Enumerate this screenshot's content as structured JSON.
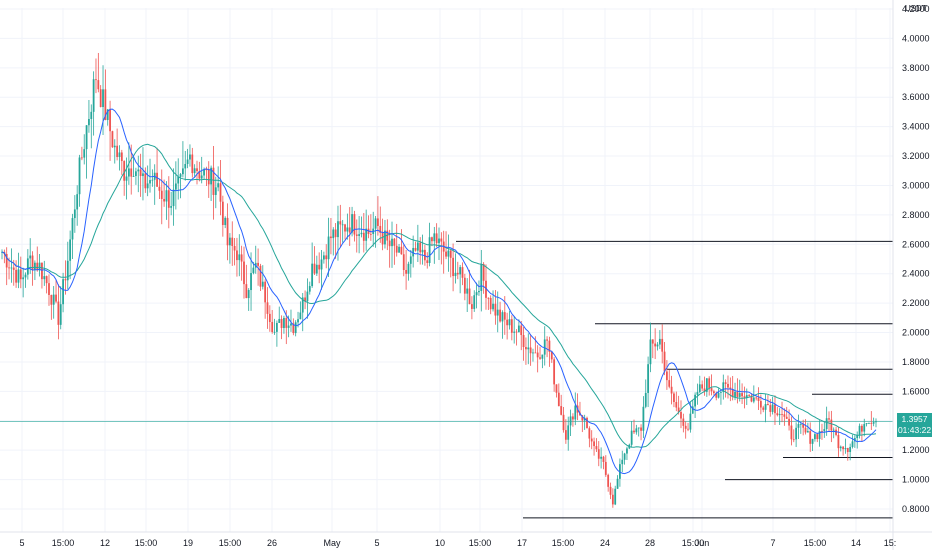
{
  "chart_data": {
    "type": "candlestick",
    "currency": "USDT",
    "ylim": [
      0.7,
      4.2
    ],
    "y_ticks": [
      "4.2000",
      "4.0000",
      "3.8000",
      "3.6000",
      "3.4000",
      "3.2000",
      "3.0000",
      "2.8000",
      "2.6000",
      "2.4000",
      "2.2000",
      "2.0000",
      "1.8000",
      "1.6000",
      "1.4000",
      "1.2000",
      "1.0000",
      "0.8000"
    ],
    "x_ticks": [
      "5",
      "15:00",
      "12",
      "15:00",
      "19",
      "15:00",
      "26",
      "May",
      "5",
      "10",
      "15:00",
      "17",
      "15:00",
      "24",
      "28",
      "15:00",
      "Jun",
      "7",
      "15:00",
      "14",
      "15:"
    ],
    "last_price": "1.3957",
    "countdown": "01:43:22",
    "horizontal_levels": [
      {
        "value": 2.62,
        "from_index": 3
      },
      {
        "value": 2.06,
        "from_index": 0
      },
      {
        "value": 1.75,
        "from_index": 2
      },
      {
        "value": 1.58,
        "from_index": 4
      },
      {
        "value": 1.15,
        "from_index": 5
      },
      {
        "value": 1.0,
        "from_index": 1
      },
      {
        "value": 0.74,
        "from_index": 6
      }
    ],
    "level_start_x_index_labels": [
      "28",
      "26",
      "Jun",
      "10",
      "15:00",
      "7",
      "17"
    ],
    "price_path": [
      2.55,
      2.45,
      2.35,
      2.5,
      2.45,
      2.3,
      2.1,
      2.5,
      3.0,
      3.4,
      3.75,
      3.5,
      3.25,
      3.1,
      3.15,
      3.0,
      3.05,
      2.95,
      2.9,
      3.0,
      3.2,
      3.1,
      3.05,
      3.0,
      2.6,
      2.55,
      2.3,
      2.45,
      2.25,
      2.0,
      2.1,
      2.05,
      2.2,
      2.45,
      2.5,
      2.65,
      2.7,
      2.75,
      2.72,
      2.68,
      2.72,
      2.6,
      2.55,
      2.4,
      2.55,
      2.5,
      2.65,
      2.55,
      2.45,
      2.35,
      2.2,
      2.4,
      2.2,
      2.1,
      2.05,
      2.0,
      1.9,
      1.85,
      1.95,
      1.6,
      1.3,
      1.5,
      1.4,
      1.2,
      1.1,
      0.85,
      1.15,
      1.3,
      1.35,
      1.9,
      1.95,
      1.6,
      1.45,
      1.35,
      1.6,
      1.65,
      1.6,
      1.62,
      1.6,
      1.58,
      1.55,
      1.52,
      1.5,
      1.45,
      1.3,
      1.35,
      1.28,
      1.32,
      1.4,
      1.25,
      1.22,
      1.3,
      1.42,
      1.4
    ],
    "ma_fast_color": "#2962ff",
    "ma_slow_color": "#26a69a",
    "up_color": "#26a69a",
    "down_color": "#ef5350",
    "grid": true
  }
}
